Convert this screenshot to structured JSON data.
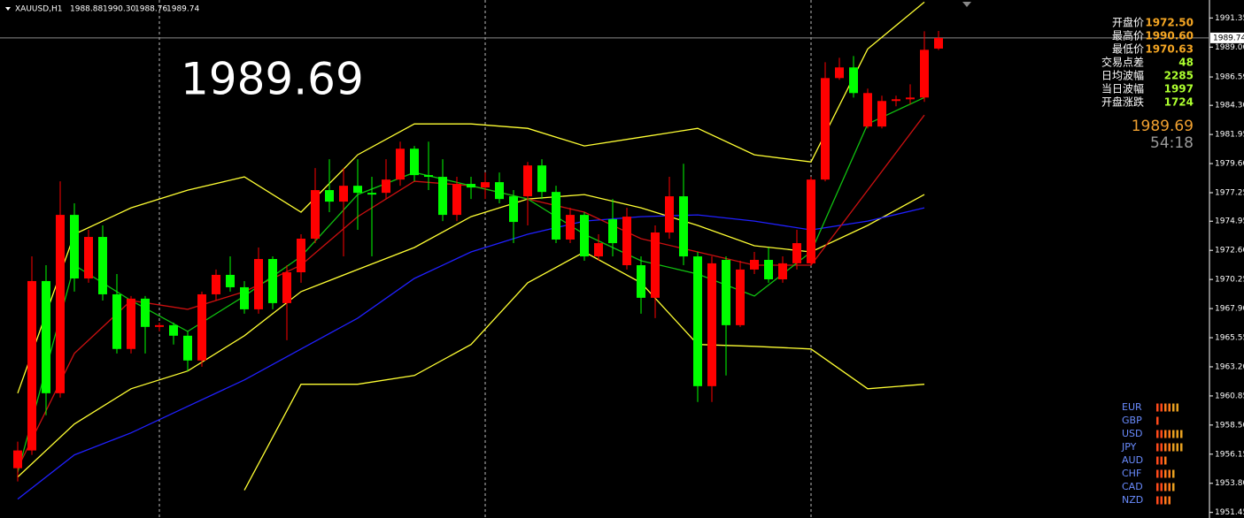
{
  "header": {
    "symbol": "XAUUSD,H1",
    "open": "1988.88",
    "high": "1990.30",
    "low": "1988.76",
    "close": "1989.74"
  },
  "bid": "1989.69",
  "timer": "54:18",
  "info": {
    "rows": [
      {
        "label": "开盘价",
        "value": "1972.50"
      },
      {
        "label": "最高价",
        "value": "1990.60"
      },
      {
        "label": "最低价",
        "value": "1970.63"
      },
      {
        "label": "交易点差",
        "value": "48"
      },
      {
        "label": "日均波幅",
        "value": "2285"
      },
      {
        "label": "当日波幅",
        "value": "1997"
      },
      {
        "label": "开盘涨跌",
        "value": "1724"
      }
    ]
  },
  "strength": {
    "currencies": [
      "EUR",
      "GBP",
      "USD",
      "JPY",
      "AUD",
      "CHF",
      "CAD",
      "NZD"
    ],
    "bars": [
      6,
      1,
      7,
      7,
      3,
      5,
      5,
      4
    ]
  },
  "chart_data": {
    "type": "candlestick",
    "up_color": "#ff0000",
    "down_color": "#00ff00",
    "open": [
      1955.02,
      1956.45,
      1970.12,
      1961.07,
      1975.46,
      1970.33,
      1973.68,
      1969.05,
      1964.64,
      1968.7,
      1966.42,
      1966.56,
      1965.71,
      1963.71,
      1969.05,
      1970.62,
      1969.62,
      1967.84,
      1971.9,
      1968.34,
      1970.83,
      1973.54,
      1977.46,
      1976.53,
      1977.81,
      1977.24,
      1977.24,
      1978.31,
      1980.8,
      1978.67,
      1978.53,
      1975.46,
      1977.96,
      1977.67,
      1978.1,
      1976.96,
      1976.96,
      1979.45,
      1977.31,
      1973.47,
      1975.46,
      1972.11,
      1975.11,
      1971.4,
      1971.4,
      1968.77,
      1974.04,
      1976.96,
      1972.11,
      1961.64,
      1971.83,
      1966.56,
      1971.05,
      1971.83,
      1970.26,
      1971.55,
      1971.55,
      1978.31,
      1986.5,
      1987.36,
      1982.59,
      1982.59,
      1984.65,
      1984.79,
      1984.93,
      1988.88
    ],
    "high": [
      1957.16,
      1972.11,
      1971.4,
      1978.17,
      1976.39,
      1974.25,
      1974.61,
      1970.69,
      1968.91,
      1968.91,
      1966.77,
      1966.77,
      1966.06,
      1969.27,
      1971.05,
      1972.11,
      1970.12,
      1972.83,
      1972.11,
      1971.4,
      1973.9,
      1979.24,
      1979.95,
      1979.24,
      1979.95,
      1978.53,
      1979.95,
      1981.37,
      1981.02,
      1981.37,
      1979.95,
      1978.53,
      1978.53,
      1978.88,
      1978.88,
      1977.46,
      1979.73,
      1979.95,
      1977.81,
      1976.03,
      1975.68,
      1973.9,
      1976.74,
      1976.03,
      1972.11,
      1974.61,
      1978.53,
      1979.59,
      1972.47,
      1972.11,
      1972.11,
      1971.76,
      1972.47,
      1972.83,
      1972.11,
      1974.25,
      1978.53,
      1987.78,
      1988.14,
      1988.28,
      1985.65,
      1985.08,
      1985.08,
      1986.0,
      1990.28,
      1990.3
    ],
    "low": [
      1953.95,
      1956.09,
      1959.29,
      1960.72,
      1969.27,
      1969.98,
      1968.55,
      1964.28,
      1964.28,
      1964.28,
      1966.06,
      1965.0,
      1962.86,
      1963.21,
      1968.55,
      1969.27,
      1967.49,
      1967.49,
      1967.84,
      1965.35,
      1969.98,
      1973.18,
      1975.68,
      1972.11,
      1974.25,
      1972.11,
      1976.74,
      1977.81,
      1978.17,
      1977.46,
      1974.96,
      1974.96,
      1976.74,
      1976.74,
      1976.39,
      1973.18,
      1974.61,
      1976.74,
      1973.18,
      1973.18,
      1971.76,
      1971.76,
      1972.11,
      1971.05,
      1967.49,
      1967.13,
      1973.54,
      1971.4,
      1960.36,
      1960.36,
      1962.5,
      1966.42,
      1970.69,
      1969.98,
      1969.98,
      1971.05,
      1971.4,
      1978.17,
      1986.36,
      1984.93,
      1982.44,
      1982.44,
      1984.22,
      1984.37,
      1984.58,
      1988.76
    ],
    "close": [
      1956.45,
      1970.12,
      1961.07,
      1975.46,
      1970.33,
      1973.68,
      1969.05,
      1964.64,
      1968.7,
      1966.42,
      1966.56,
      1965.71,
      1963.71,
      1969.05,
      1970.62,
      1969.62,
      1967.84,
      1971.9,
      1968.34,
      1970.83,
      1973.54,
      1977.46,
      1976.53,
      1977.81,
      1977.24,
      1977.1,
      1978.31,
      1980.8,
      1978.67,
      1978.53,
      1975.46,
      1977.96,
      1977.67,
      1978.1,
      1976.74,
      1974.89,
      1979.45,
      1977.31,
      1973.47,
      1975.46,
      1972.11,
      1973.18,
      1973.18,
      1975.32,
      1968.77,
      1974.04,
      1976.96,
      1972.11,
      1961.64,
      1971.55,
      1966.56,
      1971.05,
      1971.83,
      1970.26,
      1971.55,
      1973.18,
      1978.31,
      1986.5,
      1987.36,
      1985.29,
      1985.29,
      1984.65,
      1984.79,
      1984.93,
      1988.78,
      1989.74
    ],
    "lines": [
      {
        "color": "#ffff33",
        "x": [
          0,
          4,
          8,
          12,
          16,
          20,
          24,
          28,
          32,
          36,
          40,
          44,
          48,
          52,
          56,
          60,
          64
        ],
        "values": [
          1961.07,
          1973.9,
          1976.03,
          1977.46,
          1978.53,
          1975.68,
          1980.31,
          1982.8,
          1982.8,
          1982.44,
          1981.02,
          1981.73,
          1982.44,
          1980.31,
          1979.73,
          1988.85,
          1992.63
        ]
      },
      {
        "color": "#ffff33",
        "x": [
          0,
          4,
          8,
          12,
          16,
          20,
          24,
          28,
          32,
          36,
          40,
          44,
          48,
          52,
          56,
          60,
          64
        ],
        "values": [
          1954.31,
          1958.58,
          1961.43,
          1962.86,
          1965.71,
          1969.27,
          1971.05,
          1972.83,
          1975.32,
          1976.74,
          1977.1,
          1976.03,
          1974.61,
          1972.97,
          1972.47,
          1974.61,
          1977.1
        ]
      },
      {
        "color": "#ffff33",
        "x": [
          16,
          20,
          24,
          28,
          32,
          36,
          40,
          44,
          48,
          52,
          56,
          60,
          64
        ],
        "values": [
          1953.24,
          1961.79,
          1961.79,
          1962.5,
          1965.0,
          1969.98,
          1972.47,
          1969.98,
          1965.0,
          1964.85,
          1964.64,
          1961.43,
          1961.79
        ]
      },
      {
        "color": "#2020ff",
        "x": [
          0,
          4,
          8,
          12,
          16,
          20,
          24,
          28,
          32,
          36,
          40,
          44,
          48,
          52,
          56,
          60,
          64
        ],
        "values": [
          1952.53,
          1956.09,
          1957.87,
          1960.01,
          1962.14,
          1964.64,
          1967.13,
          1970.33,
          1972.47,
          1973.9,
          1974.96,
          1975.32,
          1975.46,
          1974.96,
          1974.25,
          1974.96,
          1976.03
        ]
      },
      {
        "color": "#cc1010",
        "x": [
          0,
          4,
          8,
          12,
          16,
          20,
          24,
          28,
          32,
          36,
          40,
          44,
          48,
          52,
          56,
          60,
          64
        ],
        "values": [
          1955.02,
          1964.28,
          1968.55,
          1967.84,
          1969.27,
          1971.4,
          1975.32,
          1978.17,
          1977.81,
          1976.74,
          1975.68,
          1973.54,
          1972.47,
          1971.4,
          1971.4,
          1977.46,
          1983.51
        ]
      },
      {
        "color": "#10c010",
        "x": [
          0,
          4,
          8,
          12,
          16,
          20,
          24,
          28,
          32,
          36,
          40,
          44,
          48,
          52,
          56,
          60,
          64
        ],
        "values": [
          1954.67,
          1971.4,
          1968.55,
          1966.06,
          1968.91,
          1972.11,
          1977.1,
          1978.88,
          1977.81,
          1976.74,
          1973.9,
          1971.76,
          1970.69,
          1968.91,
          1972.47,
          1982.8,
          1984.93
        ]
      }
    ],
    "ylim": [
      1951.0,
      1992.8
    ],
    "yticks": [
      1991.35,
      {
        "value": 1989,
        "label": "1989.00"
      },
      1986.59,
      {
        "value": 1984.3,
        "label": "1984.30"
      },
      1981.95,
      {
        "value": 1979.6,
        "label": "1979.60"
      },
      1977.25,
      1974.95,
      {
        "value": 1972.6,
        "label": "1972.60"
      },
      1970.25,
      {
        "value": 1967.9,
        "label": "1967.90"
      },
      1965.55,
      {
        "value": 1963.2,
        "label": "1963.20"
      },
      1960.85,
      {
        "value": 1958.5,
        "label": "1958.50"
      },
      1956.15,
      {
        "value": 1953.8,
        "label": "1953.80"
      },
      1951.45
    ]
  }
}
